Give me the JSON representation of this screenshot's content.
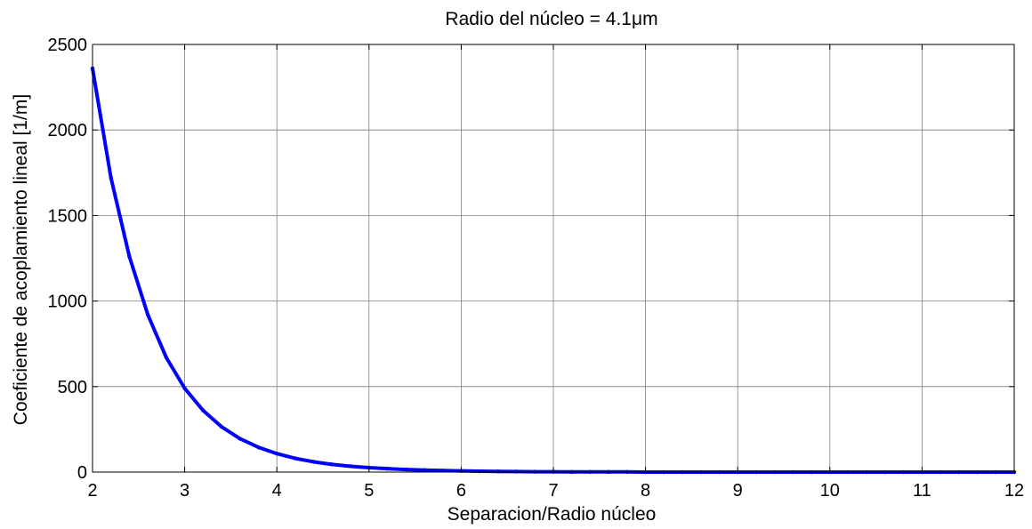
{
  "chart_data": {
    "type": "line",
    "title": "Radio del núcleo = 4.1μm",
    "xlabel": "Separacion/Radio núcleo",
    "ylabel": "Coeficiente de acoplamiento lineal [1/m]",
    "xlim": [
      2,
      12
    ],
    "ylim": [
      0,
      2500
    ],
    "xticks": [
      2,
      3,
      4,
      5,
      6,
      7,
      8,
      9,
      10,
      11,
      12
    ],
    "yticks": [
      0,
      500,
      1000,
      1500,
      2000,
      2500
    ],
    "grid": true,
    "series": [
      {
        "color": "#0000ff",
        "x": [
          2.0,
          2.2,
          2.4,
          2.6,
          2.8,
          3.0,
          3.2,
          3.4,
          3.6,
          3.8,
          4.0,
          4.2,
          4.4,
          4.6,
          4.8,
          5.0,
          5.2,
          5.4,
          5.6,
          5.8,
          6.0,
          6.2,
          6.4,
          6.6,
          6.8,
          7.0,
          7.2,
          7.4,
          7.6,
          7.8,
          8.0,
          8.2,
          8.4,
          8.6,
          8.8,
          9.0,
          9.2,
          9.4,
          9.6,
          9.8,
          10.0,
          10.2,
          10.4,
          10.6,
          10.8,
          11.0,
          11.2,
          11.4,
          11.6,
          11.8,
          12.0
        ],
        "y": [
          2360,
          1720,
          1260,
          920,
          670,
          490,
          360,
          265,
          195,
          145,
          108,
          80,
          60,
          45,
          34,
          26,
          20,
          15,
          12,
          9,
          7,
          5,
          4,
          3,
          2,
          2,
          1,
          1,
          1,
          1,
          0,
          0,
          0,
          0,
          0,
          0,
          0,
          0,
          0,
          0,
          0,
          0,
          0,
          0,
          0,
          0,
          0,
          0,
          0,
          0,
          0
        ]
      }
    ]
  }
}
